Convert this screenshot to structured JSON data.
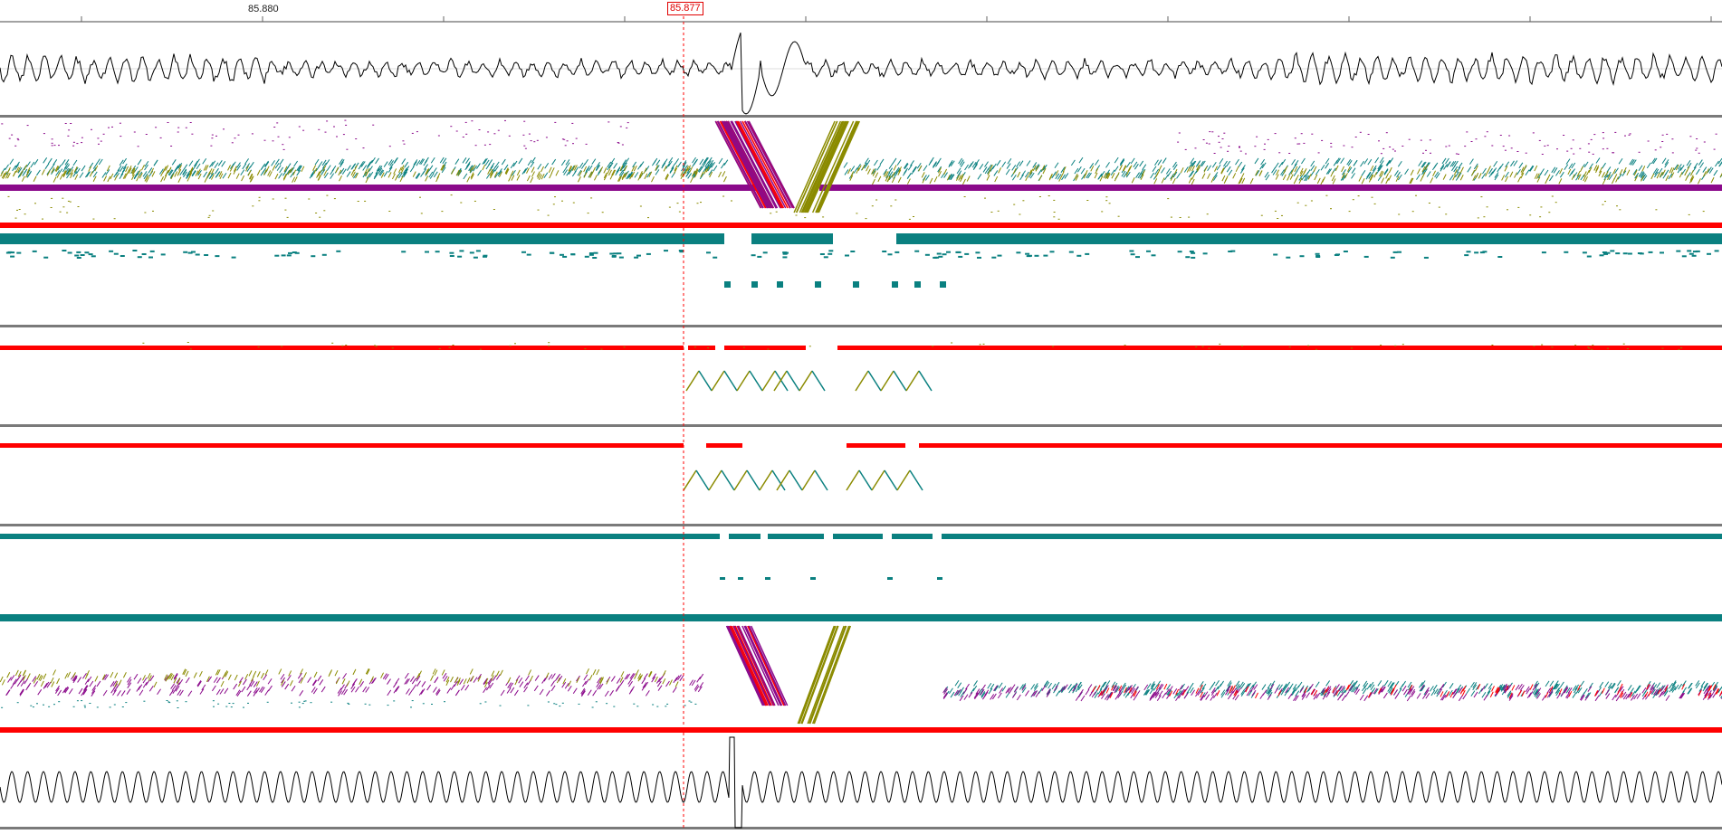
{
  "ruler": {
    "tick_labels": [
      "85.880"
    ],
    "cursor_label": "85.877"
  },
  "colors": {
    "purple": "#8b0a8b",
    "teal": "#0a8080",
    "olive": "#8b8b00",
    "red": "#ff0000",
    "trace": "#000000",
    "separator": "#7a7a7a",
    "cursor": "#ff0000"
  },
  "icons": []
}
